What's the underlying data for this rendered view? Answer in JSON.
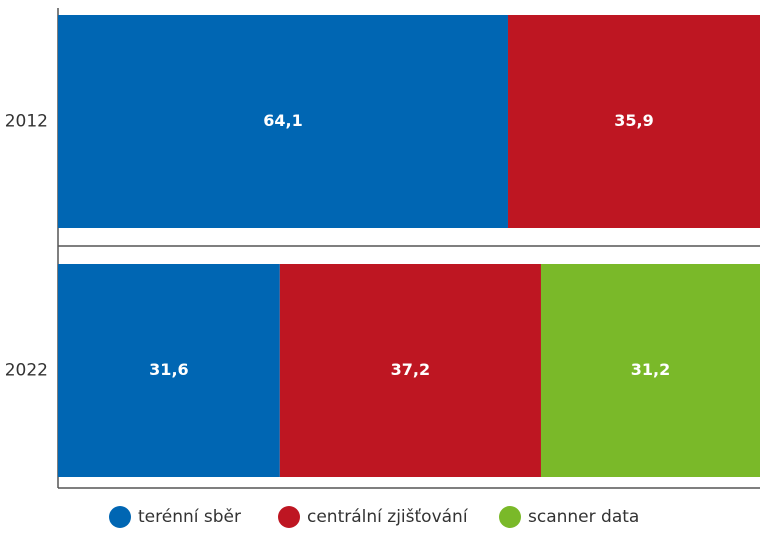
{
  "chart_data": {
    "type": "stacked-bar",
    "orientation": "horizontal",
    "categories": [
      "2012",
      "2022"
    ],
    "series": [
      {
        "name": "terénní sběr",
        "color": "#0066b3",
        "values": [
          64.1,
          31.6
        ],
        "value_labels": [
          "64,1",
          "31,6"
        ]
      },
      {
        "name": "centrální zjišťování",
        "color": "#be1622",
        "values": [
          35.9,
          37.2
        ],
        "value_labels": [
          "35,9",
          "37,2"
        ]
      },
      {
        "name": "scanner data",
        "color": "#7ab929",
        "values": [
          null,
          31.2
        ],
        "value_labels": [
          null,
          "31,2"
        ]
      }
    ],
    "xlim": [
      0,
      100
    ],
    "legend": "bottom"
  }
}
